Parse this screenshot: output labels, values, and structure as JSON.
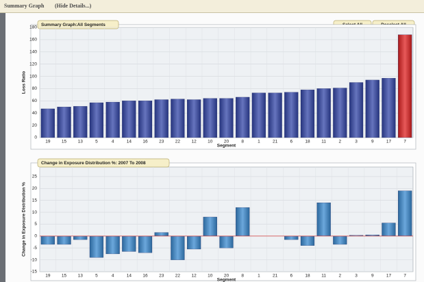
{
  "header": {
    "title": "Summary Graph",
    "toggle": "(Hide Details...)",
    "select_all": "Select All",
    "deselect_all": "Deselect All"
  },
  "chart_data": [
    {
      "type": "bar",
      "title": "Summary Graph:All Segments",
      "x_label": "Segment",
      "y_label": "Loss Ratio",
      "categories": [
        "19",
        "15",
        "13",
        "5",
        "4",
        "14",
        "16",
        "23",
        "22",
        "12",
        "10",
        "20",
        "8",
        "1",
        "21",
        "6",
        "18",
        "11",
        "2",
        "3",
        "9",
        "17",
        "7"
      ],
      "values": [
        47,
        50,
        51,
        57,
        58,
        60,
        60,
        62,
        63,
        62,
        64,
        64,
        66,
        73,
        73,
        74,
        78,
        80,
        81,
        90,
        94,
        97,
        168
      ],
      "colors": [
        "#3346a8",
        "#3346a8",
        "#3346a8",
        "#3346a8",
        "#3346a8",
        "#3346a8",
        "#3346a8",
        "#3346a8",
        "#3346a8",
        "#3346a8",
        "#3346a8",
        "#3346a8",
        "#3346a8",
        "#3346a8",
        "#3346a8",
        "#3346a8",
        "#3346a8",
        "#3346a8",
        "#3346a8",
        "#3346a8",
        "#3346a8",
        "#3346a8",
        "#e02222"
      ],
      "ylim": [
        0,
        180
      ],
      "yticks": [
        0,
        20,
        40,
        60,
        80,
        100,
        120,
        140,
        160,
        180
      ],
      "grid": true
    },
    {
      "type": "bar",
      "title": "Change in Exposure Distribution %: 2007 To 2008",
      "x_label": "Segment",
      "y_label": "Change in Exposure Distribution %",
      "categories": [
        "19",
        "15",
        "13",
        "5",
        "4",
        "14",
        "16",
        "23",
        "22",
        "12",
        "10",
        "20",
        "8",
        "1",
        "21",
        "6",
        "18",
        "11",
        "2",
        "3",
        "9",
        "17",
        "7"
      ],
      "values": [
        -3.5,
        -3.5,
        -1.5,
        -9,
        -7.5,
        -6.5,
        -7,
        1.5,
        -10,
        -5.5,
        8,
        -5,
        12,
        0,
        0,
        -1.5,
        -4,
        14,
        -3.5,
        0.3,
        0.5,
        5.5,
        19
      ],
      "color": "#3a8ad0",
      "ylim": [
        -15,
        29
      ],
      "yticks": [
        -15,
        -10,
        -5,
        0,
        5,
        10,
        15,
        20,
        25
      ],
      "grid": true
    }
  ]
}
